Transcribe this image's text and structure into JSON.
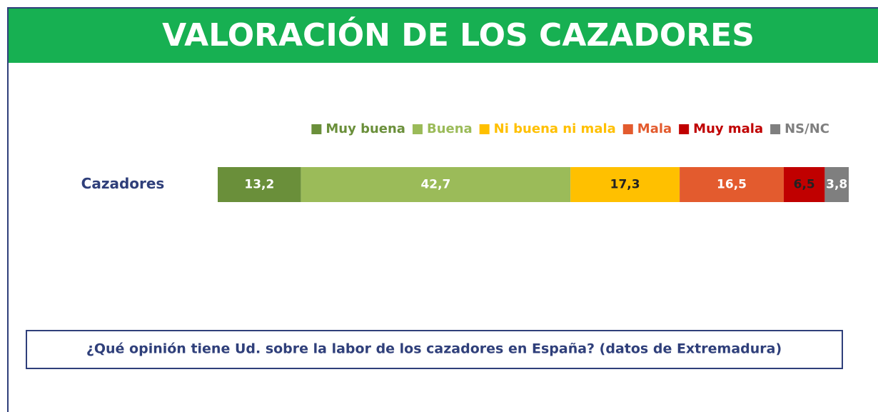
{
  "chart_data": {
    "type": "stacked-bar-horizontal",
    "title": "VALORACIÓN DE LOS CAZADORES",
    "categories": [
      "Cazadores"
    ],
    "series": [
      {
        "name": "Muy buena",
        "color": "#6a8f3a",
        "values": [
          13.2
        ],
        "value_labels": [
          "13,2"
        ]
      },
      {
        "name": "Buena",
        "color": "#9bbb59",
        "values": [
          42.7
        ],
        "value_labels": [
          "42,7"
        ]
      },
      {
        "name": "Ni buena ni mala",
        "color": "#ffc000",
        "values": [
          17.3
        ],
        "value_labels": [
          "17,3"
        ]
      },
      {
        "name": "Mala",
        "color": "#e35b2e",
        "values": [
          16.5
        ],
        "value_labels": [
          "16,5"
        ]
      },
      {
        "name": "Muy mala",
        "color": "#c00000",
        "values": [
          6.5
        ],
        "value_labels": [
          "6,5"
        ]
      },
      {
        "name": "NS/NC",
        "color": "#7f7f7f",
        "values": [
          3.8
        ],
        "value_labels": [
          "3,8"
        ]
      }
    ],
    "note": "¿Qué opinión tiene Ud. sobre la labor de los cazadores en España? (datos de Extremadura)"
  }
}
